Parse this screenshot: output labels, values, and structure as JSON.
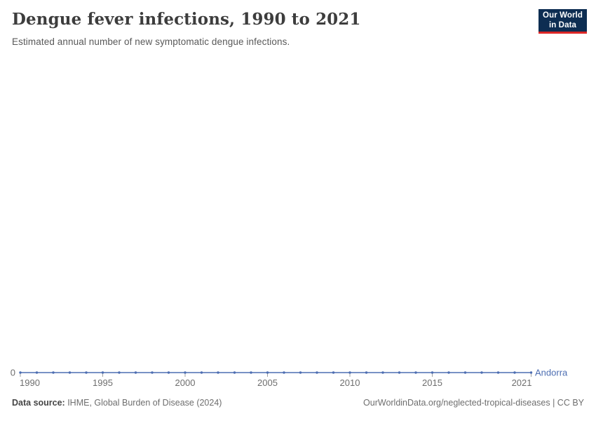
{
  "header": {
    "title": "Dengue fever infections, 1990 to 2021",
    "subtitle": "Estimated annual number of new symptomatic dengue infections."
  },
  "logo": {
    "line1": "Our World",
    "line2": "in Data",
    "bg_color": "#0d2d52",
    "accent_color": "#dc2626"
  },
  "chart_data": {
    "type": "line",
    "title": "Dengue fever infections, 1990 to 2021",
    "subtitle": "Estimated annual number of new symptomatic dengue infections.",
    "x": [
      1990,
      1991,
      1992,
      1993,
      1994,
      1995,
      1996,
      1997,
      1998,
      1999,
      2000,
      2001,
      2002,
      2003,
      2004,
      2005,
      2006,
      2007,
      2008,
      2009,
      2010,
      2011,
      2012,
      2013,
      2014,
      2015,
      2016,
      2017,
      2018,
      2019,
      2020,
      2021
    ],
    "series": [
      {
        "name": "Andorra",
        "values": [
          0,
          0,
          0,
          0,
          0,
          0,
          0,
          0,
          0,
          0,
          0,
          0,
          0,
          0,
          0,
          0,
          0,
          0,
          0,
          0,
          0,
          0,
          0,
          0,
          0,
          0,
          0,
          0,
          0,
          0,
          0,
          0
        ],
        "color": "#4d6eb2"
      }
    ],
    "x_ticks": [
      1990,
      1995,
      2000,
      2005,
      2010,
      2015,
      2021
    ],
    "y_ticks": [
      0
    ],
    "ylim": [
      0,
      0
    ],
    "xlabel": "",
    "ylabel": "",
    "grid": false,
    "legend_position": "end-of-line",
    "axis_tick_color": "#a0a0a0",
    "tick_label_color": "#6e6e6e"
  },
  "footer": {
    "source_label": "Data source:",
    "source_text": " IHME, Global Burden of Disease (2024)",
    "credit_text": "OurWorldinData.org/neglected-tropical-diseases | CC BY"
  }
}
